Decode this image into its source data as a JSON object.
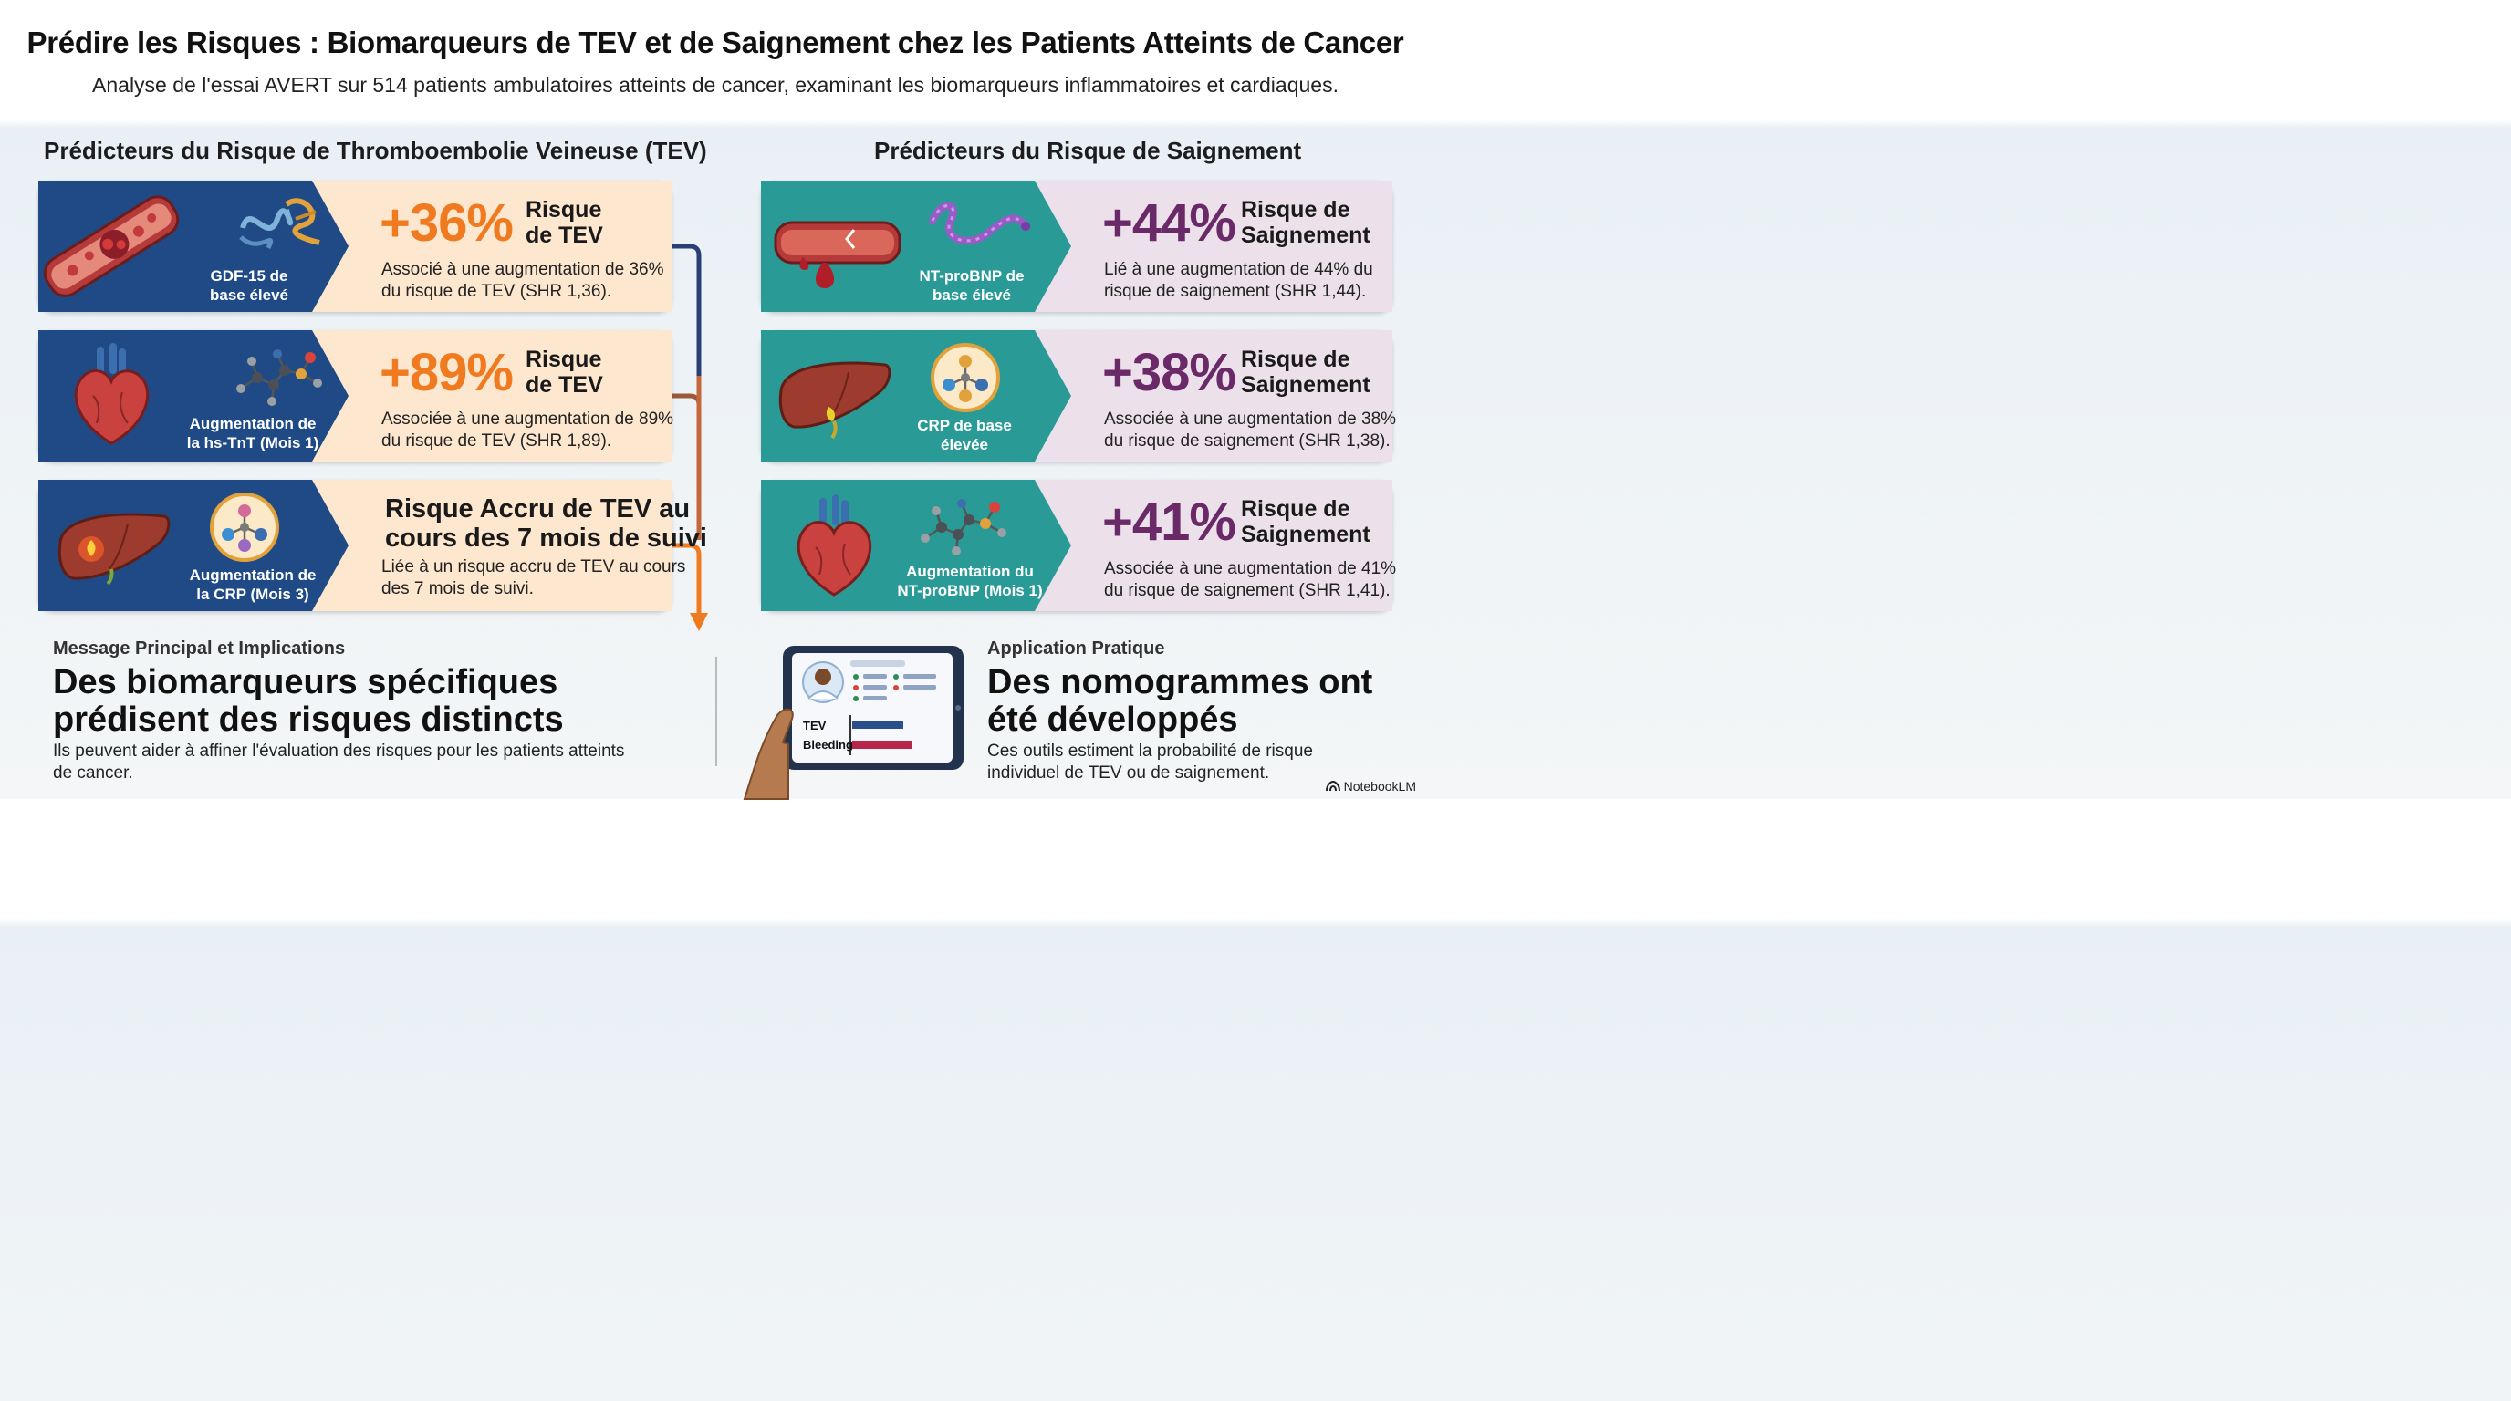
{
  "header": {
    "title": "Prédire les Risques : Biomarqueurs de TEV et de Saignement chez les Patients Atteints de Cancer",
    "subtitle": "Analyse de l'essai AVERT sur 514 patients ambulatoires atteints de cancer, examinant les biomarqueurs inflammatoires et cardiaques."
  },
  "tev": {
    "heading": "Prédicteurs du Risque de Thromboembolie Veineuse (TEV)",
    "cards": [
      {
        "biomarker_line1": "GDF-15 de",
        "biomarker_line2": "base élevé",
        "percent": "+36%",
        "risk_line1": "Risque",
        "risk_line2": "de TEV",
        "desc_line1": "Associé à une augmentation de 36%",
        "desc_line2": "du risque de TEV (SHR 1,36)."
      },
      {
        "biomarker_line1": "Augmentation de",
        "biomarker_line2": "la hs-TnT (Mois 1)",
        "percent": "+89%",
        "risk_line1": "Risque",
        "risk_line2": "de TEV",
        "desc_line1": "Associée à une augmentation de 89%",
        "desc_line2": "du risque de TEV (SHR 1,89)."
      },
      {
        "biomarker_line1": "Augmentation de",
        "biomarker_line2": "la CRP (Mois 3)",
        "headline_line1": "Risque Accru de TEV au",
        "headline_line2": "cours des 7 mois de suivi",
        "desc_line1": "Liée à un risque accru de TEV au cours",
        "desc_line2": "des 7 mois de suivi."
      }
    ]
  },
  "bleeding": {
    "heading": "Prédicteurs du Risque de Saignement",
    "cards": [
      {
        "biomarker_line1": "NT-proBNP de",
        "biomarker_line2": "base élevé",
        "percent": "+44%",
        "risk_line1": "Risque de",
        "risk_line2": "Saignement",
        "desc_line1": "Lié à une augmentation de 44% du",
        "desc_line2": "risque de saignement (SHR 1,44)."
      },
      {
        "biomarker_line1": "CRP de base",
        "biomarker_line2": "élevée",
        "percent": "+38%",
        "risk_line1": "Risque de",
        "risk_line2": "Saignement",
        "desc_line1": "Associée à une augmentation de 38%",
        "desc_line2": "du risque de saignement (SHR 1,38)."
      },
      {
        "biomarker_line1": "Augmentation du",
        "biomarker_line2": "NT-proBNP (Mois 1)",
        "percent": "+41%",
        "risk_line1": "Risque de",
        "risk_line2": "Saignement",
        "desc_line1": "Associée à une augmentation de 41%",
        "desc_line2": "du risque de saignement (SHR 1,41)."
      }
    ]
  },
  "message": {
    "label": "Message Principal et Implications",
    "headline_line1": "Des biomarqueurs spécifiques",
    "headline_line2": "prédisent des risques distincts",
    "text_line1": "Ils peuvent aider à affiner l'évaluation des risques pour les patients atteints",
    "text_line2": "de cancer."
  },
  "application": {
    "label": "Application Pratique",
    "headline_line1": "Des nomogrammes ont",
    "headline_line2": "été développés",
    "text_line1": "Ces outils estiment la probabilité de risque",
    "text_line2": "individuel de TEV ou de saignement.",
    "tablet": {
      "bar1_label": "TEV",
      "bar2_label": "Bleeding"
    }
  },
  "branding": {
    "name": "NotebookLM"
  },
  "colors": {
    "tev_dark": "#1f4a86",
    "tev_light": "#fde7cf",
    "tev_accent": "#ef7a1f",
    "bleed_dark": "#2a9a97",
    "bleed_light": "#ece1ea",
    "bleed_accent": "#6a2a68"
  }
}
